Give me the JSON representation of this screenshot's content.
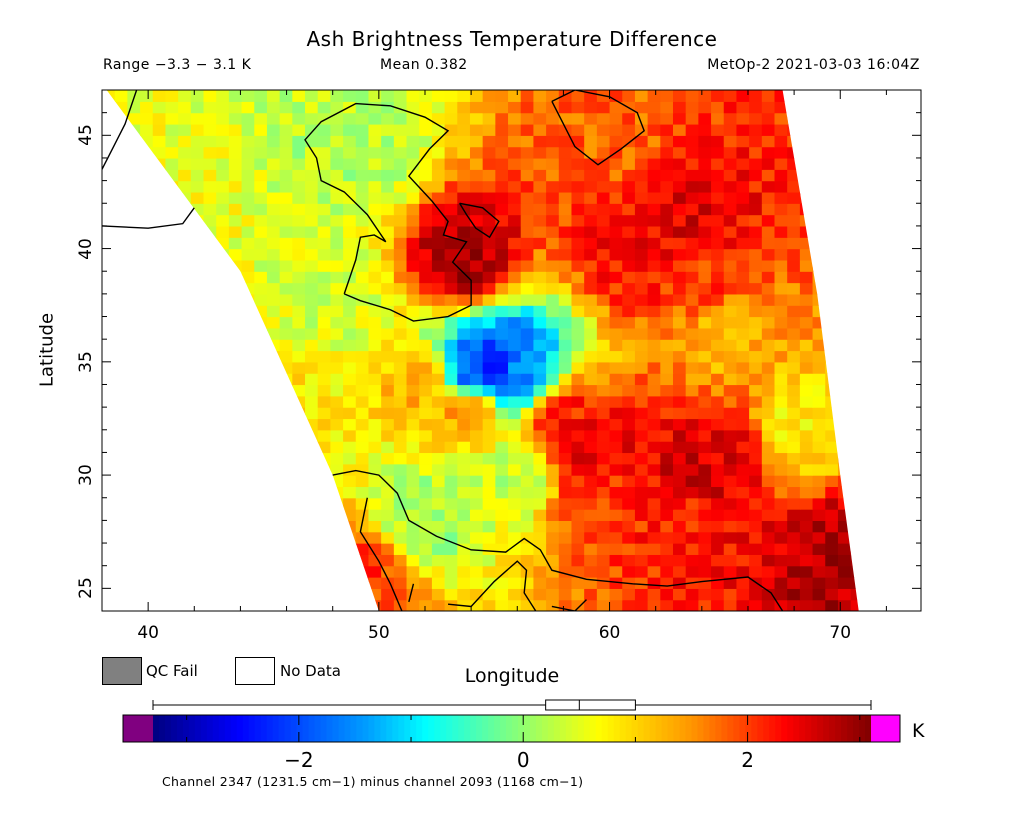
{
  "header": {
    "title": "Ash Brightness Temperature Difference",
    "range": "Range −3.3 − 3.1 K",
    "mean": "Mean 0.382",
    "source": "MetOp-2 2021-03-03 16:04Z"
  },
  "legend": {
    "qc_fail": "QC Fail",
    "no_data": "No Data",
    "qc_color": "#808080",
    "no_data_color": "#ffffff"
  },
  "colorbar": {
    "unit": "K",
    "note": "Channel 2347 (1231.5 cm−1) minus channel 2093 (1168 cm−1)",
    "min": -3.3,
    "max": 3.1,
    "ticks": [
      {
        "v": -2,
        "label": "−2"
      },
      {
        "v": 0,
        "label": "0"
      },
      {
        "v": 2,
        "label": "2"
      }
    ],
    "underflow_color": "#800080",
    "overflow_color": "#ff00ff",
    "box_stats": {
      "min": -3.3,
      "q1": 0.2,
      "median": 0.5,
      "q3": 1.0,
      "max": 3.1
    }
  },
  "chart_data": {
    "type": "heatmap",
    "title": "Ash Brightness Temperature Difference",
    "xlabel": "Longitude",
    "ylabel": "Latitude",
    "xlim": [
      38,
      73.5
    ],
    "ylim": [
      24,
      47
    ],
    "xticks": [
      40,
      50,
      60,
      70
    ],
    "yticks": [
      25,
      30,
      35,
      40,
      45
    ],
    "value_units": "K",
    "value_range": [
      -3.3,
      3.1
    ],
    "mean": 0.382,
    "swath": {
      "left_edge": [
        [
          38.2,
          47
        ],
        [
          44,
          39
        ],
        [
          48,
          30
        ],
        [
          50,
          24
        ]
      ],
      "right_edge": [
        [
          67.5,
          47
        ],
        [
          69,
          38
        ],
        [
          70,
          30
        ],
        [
          70.8,
          24
        ]
      ]
    },
    "features": [
      {
        "lon": 55,
        "lat": 34.7,
        "value": -2.6
      },
      {
        "lon": 54,
        "lat": 34.3,
        "value": -1.8
      },
      {
        "lon": 56,
        "lat": 34.5,
        "value": -1.5
      },
      {
        "lon": 59,
        "lat": 31,
        "value": 2.6
      },
      {
        "lon": 58,
        "lat": 32.5,
        "value": 2.2
      },
      {
        "lon": 59.5,
        "lat": 29,
        "value": 2.0
      },
      {
        "lon": 64,
        "lat": 30,
        "value": 2.7
      },
      {
        "lon": 65,
        "lat": 31,
        "value": 2.5
      },
      {
        "lon": 63.5,
        "lat": 28.5,
        "value": 2.2
      },
      {
        "lon": 61,
        "lat": 40,
        "value": 2.3
      },
      {
        "lon": 63.5,
        "lat": 41,
        "value": 2.5
      },
      {
        "lon": 64,
        "lat": 39,
        "value": 2.0
      },
      {
        "lon": 60,
        "lat": 44.5,
        "value": 1.8
      },
      {
        "lon": 53.7,
        "lat": 39.5,
        "value": 2.8
      },
      {
        "lon": 70,
        "lat": 26.5,
        "value": 2.8
      },
      {
        "lon": 49.5,
        "lat": 25.5,
        "value": 2.0
      },
      {
        "lon": 54,
        "lat": 33,
        "value": 1.8
      },
      {
        "lon": 52,
        "lat": 34,
        "value": 1.4
      },
      {
        "lon": 65,
        "lat": 36,
        "value": 1.3
      },
      {
        "lon": 41,
        "lat": 40,
        "value": 0.6
      },
      {
        "lon": 48,
        "lat": 38,
        "value": 0.4
      },
      {
        "lon": 45,
        "lat": 33,
        "value": 0.9
      },
      {
        "lon": 52,
        "lat": 28,
        "value": 0.1
      },
      {
        "lon": 56,
        "lat": 30,
        "value": 0.3
      },
      {
        "lon": 68,
        "lat": 32,
        "value": 0.8
      },
      {
        "lon": 49,
        "lat": 44,
        "value": 0.2
      }
    ]
  }
}
